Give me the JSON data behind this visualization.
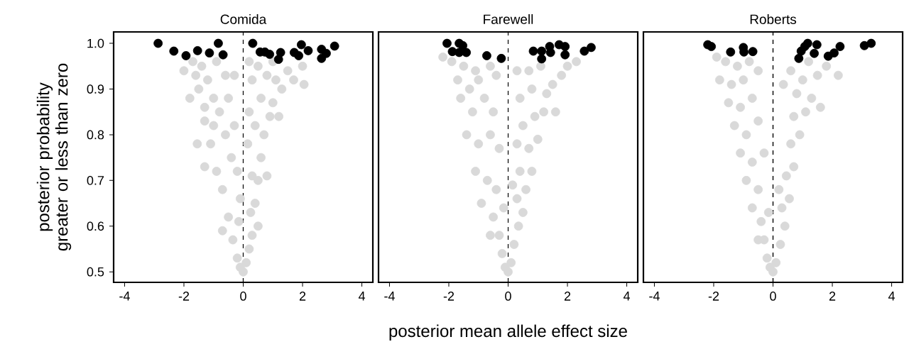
{
  "chart_data": [
    {
      "type": "scatter",
      "title": "Comida",
      "ylabel": "posterior probability greater or less than zero",
      "xlim": [
        -4.37,
        4.37
      ],
      "ylim": [
        0.477,
        1.025
      ],
      "xticks": [
        -4,
        -2,
        0,
        2,
        4
      ],
      "yticks": [
        {
          "value": 0.5,
          "label": "0.5"
        },
        {
          "value": 0.6,
          "label": "0.6"
        },
        {
          "value": 0.7,
          "label": "0.7"
        },
        {
          "value": 0.8,
          "label": "0.8"
        },
        {
          "value": 0.9,
          "label": "0.9"
        },
        {
          "value": 1.0,
          "label": "1.0"
        }
      ],
      "marker": "circle",
      "grid": false,
      "ref_lines": [
        {
          "axis": "x",
          "value": 0,
          "line_style": "dashed",
          "color": "#000000"
        }
      ],
      "series": [
        {
          "color": "#d9d9d9",
          "x": [
            -2.0,
            -1.7,
            -1.6,
            -1.8,
            -1.5,
            -1.3,
            -1.2,
            -0.9,
            -0.6,
            -0.3,
            -0.5,
            -0.8,
            -1.0,
            -1.55,
            -1.3,
            -1.1,
            -0.9,
            -0.6,
            -0.3,
            -0.2,
            -0.7,
            -0.5,
            -0.35,
            -0.2,
            -0.1,
            -0.7,
            -0.4,
            -1.3,
            -1.0,
            -0.1,
            0.0,
            0.1,
            0.2,
            0.3,
            0.25,
            0.4,
            0.5,
            0.6,
            0.3,
            0.15,
            0.2,
            0.4,
            0.7,
            0.9,
            1.0,
            0.6,
            0.3,
            0.8,
            1.1,
            1.3,
            1.5,
            1.7,
            2.0,
            2.05,
            0.2,
            0.5,
            1.0,
            -0.15,
            0.5,
            0.8,
            1.2,
            -1.4
          ],
          "values": [
            0.94,
            0.96,
            0.93,
            0.88,
            0.9,
            0.86,
            0.92,
            0.96,
            0.93,
            0.93,
            0.88,
            0.85,
            0.82,
            0.78,
            0.73,
            0.78,
            0.72,
            0.8,
            0.82,
            0.72,
            0.68,
            0.62,
            0.57,
            0.53,
            0.51,
            0.59,
            0.75,
            0.83,
            0.88,
            0.66,
            0.5,
            0.52,
            0.55,
            0.58,
            0.63,
            0.65,
            0.7,
            0.75,
            0.71,
            0.78,
            0.85,
            0.82,
            0.8,
            0.84,
            0.87,
            0.88,
            0.92,
            0.93,
            0.92,
            0.9,
            0.94,
            0.92,
            0.95,
            0.91,
            0.96,
            0.95,
            0.96,
            0.61,
            0.6,
            0.71,
            0.84,
            0.95
          ]
        },
        {
          "color": "#000000",
          "x": [
            -2.87,
            -2.34,
            -1.93,
            -1.54,
            -1.14,
            -0.84,
            -0.68,
            0.32,
            0.57,
            0.73,
            0.89,
            1.19,
            1.26,
            1.72,
            1.87,
            1.96,
            2.19,
            2.64,
            2.64,
            2.8,
            3.08
          ],
          "values": [
            1.0,
            0.983,
            0.973,
            0.984,
            0.979,
            1.0,
            0.975,
            1.0,
            0.981,
            0.981,
            0.976,
            0.965,
            0.98,
            0.98,
            0.973,
            0.997,
            0.984,
            0.987,
            0.967,
            0.978,
            0.994
          ]
        }
      ]
    },
    {
      "type": "scatter",
      "title": "Farewell",
      "xlabel": "posterior mean allele effect size",
      "xlim": [
        -4.37,
        4.37
      ],
      "ylim": [
        0.477,
        1.025
      ],
      "xticks": [
        -4,
        -2,
        0,
        2,
        4
      ],
      "tick_labels": "x",
      "marker": "circle",
      "grid": false,
      "ref_lines": [
        {
          "axis": "x",
          "value": 0,
          "line_style": "dashed",
          "color": "#000000"
        }
      ],
      "series": [
        {
          "color": "#d9d9d9",
          "x": [
            -2.2,
            -1.9,
            -1.5,
            -1.1,
            -1.7,
            -1.3,
            -1.0,
            -0.6,
            -0.4,
            -1.6,
            -1.2,
            -0.8,
            -0.5,
            -1.4,
            -1.0,
            -0.6,
            -0.3,
            -1.1,
            -0.7,
            -0.4,
            -0.9,
            -0.5,
            -0.3,
            -0.6,
            -0.2,
            -0.1,
            0.0,
            0.1,
            0.2,
            0.35,
            0.5,
            0.3,
            0.6,
            0.4,
            0.8,
            0.3,
            0.7,
            1.0,
            0.5,
            0.9,
            1.2,
            0.4,
            0.8,
            1.3,
            1.5,
            0.7,
            1.1,
            1.8,
            2.0,
            2.3,
            0.3,
            1.6,
            0.15,
            -0.15
          ],
          "values": [
            0.97,
            0.96,
            0.95,
            0.94,
            0.92,
            0.9,
            0.92,
            0.95,
            0.93,
            0.88,
            0.85,
            0.88,
            0.85,
            0.8,
            0.78,
            0.8,
            0.77,
            0.72,
            0.7,
            0.68,
            0.65,
            0.62,
            0.58,
            0.58,
            0.54,
            0.51,
            0.5,
            0.52,
            0.56,
            0.6,
            0.63,
            0.66,
            0.68,
            0.72,
            0.72,
            0.78,
            0.77,
            0.79,
            0.82,
            0.84,
            0.85,
            0.88,
            0.9,
            0.89,
            0.91,
            0.94,
            0.95,
            0.93,
            0.95,
            0.96,
            0.94,
            0.85,
            0.69,
            0.64
          ]
        },
        {
          "color": "#000000",
          "x": [
            -2.06,
            -1.65,
            -1.53,
            -1.88,
            -1.65,
            -1.41,
            -0.72,
            -0.23,
            0.85,
            1.13,
            1.4,
            1.43,
            1.13,
            1.72,
            1.92,
            1.92,
            2.57,
            2.8
          ],
          "values": [
            1.0,
            1.0,
            0.995,
            0.982,
            0.98,
            0.98,
            0.973,
            0.967,
            0.983,
            0.983,
            0.993,
            0.98,
            0.966,
            0.997,
            0.993,
            0.975,
            0.983,
            0.991
          ]
        }
      ]
    },
    {
      "type": "scatter",
      "title": "Roberts",
      "xlim": [
        -4.37,
        4.37
      ],
      "ylim": [
        0.477,
        1.025
      ],
      "xticks": [
        -4,
        -2,
        0,
        2,
        4
      ],
      "tick_labels": "x",
      "marker": "circle",
      "grid": false,
      "ref_lines": [
        {
          "axis": "x",
          "value": 0,
          "line_style": "dashed",
          "color": "#000000"
        }
      ],
      "series": [
        {
          "color": "#d9d9d9",
          "x": [
            -1.9,
            -1.6,
            -1.2,
            -0.8,
            -1.8,
            -1.4,
            -1.0,
            -0.5,
            -1.5,
            -1.1,
            -0.7,
            -1.3,
            -0.9,
            -0.5,
            -1.1,
            -0.7,
            -0.3,
            -0.9,
            -0.5,
            -0.7,
            -0.4,
            -0.3,
            -0.5,
            -0.2,
            -0.1,
            0.0,
            0.1,
            0.25,
            0.4,
            0.3,
            0.55,
            0.45,
            0.7,
            0.6,
            0.9,
            0.7,
            1.1,
            0.8,
            1.3,
            1.0,
            1.5,
            1.8,
            2.2,
            0.6,
            1.2,
            0.35,
            1.6,
            -0.15,
            0.2
          ],
          "values": [
            0.97,
            0.96,
            0.95,
            0.96,
            0.92,
            0.91,
            0.92,
            0.94,
            0.87,
            0.86,
            0.88,
            0.82,
            0.8,
            0.83,
            0.76,
            0.74,
            0.76,
            0.7,
            0.68,
            0.64,
            0.61,
            0.57,
            0.57,
            0.53,
            0.51,
            0.5,
            0.52,
            0.56,
            0.6,
            0.64,
            0.66,
            0.71,
            0.73,
            0.78,
            0.8,
            0.84,
            0.85,
            0.89,
            0.88,
            0.92,
            0.93,
            0.95,
            0.93,
            0.94,
            0.96,
            0.91,
            0.86,
            0.63,
            0.68
          ]
        },
        {
          "color": "#000000",
          "x": [
            -2.2,
            -2.08,
            -1.43,
            -1.0,
            -0.98,
            -0.68,
            0.87,
            0.95,
            1.07,
            1.17,
            1.39,
            1.48,
            1.86,
            2.06,
            2.26,
            3.08,
            3.31
          ],
          "values": [
            0.997,
            0.993,
            0.981,
            0.991,
            0.981,
            0.982,
            0.967,
            0.983,
            0.993,
            1.0,
            0.978,
            0.997,
            0.972,
            0.979,
            0.993,
            0.995,
            1.0
          ]
        }
      ]
    }
  ]
}
